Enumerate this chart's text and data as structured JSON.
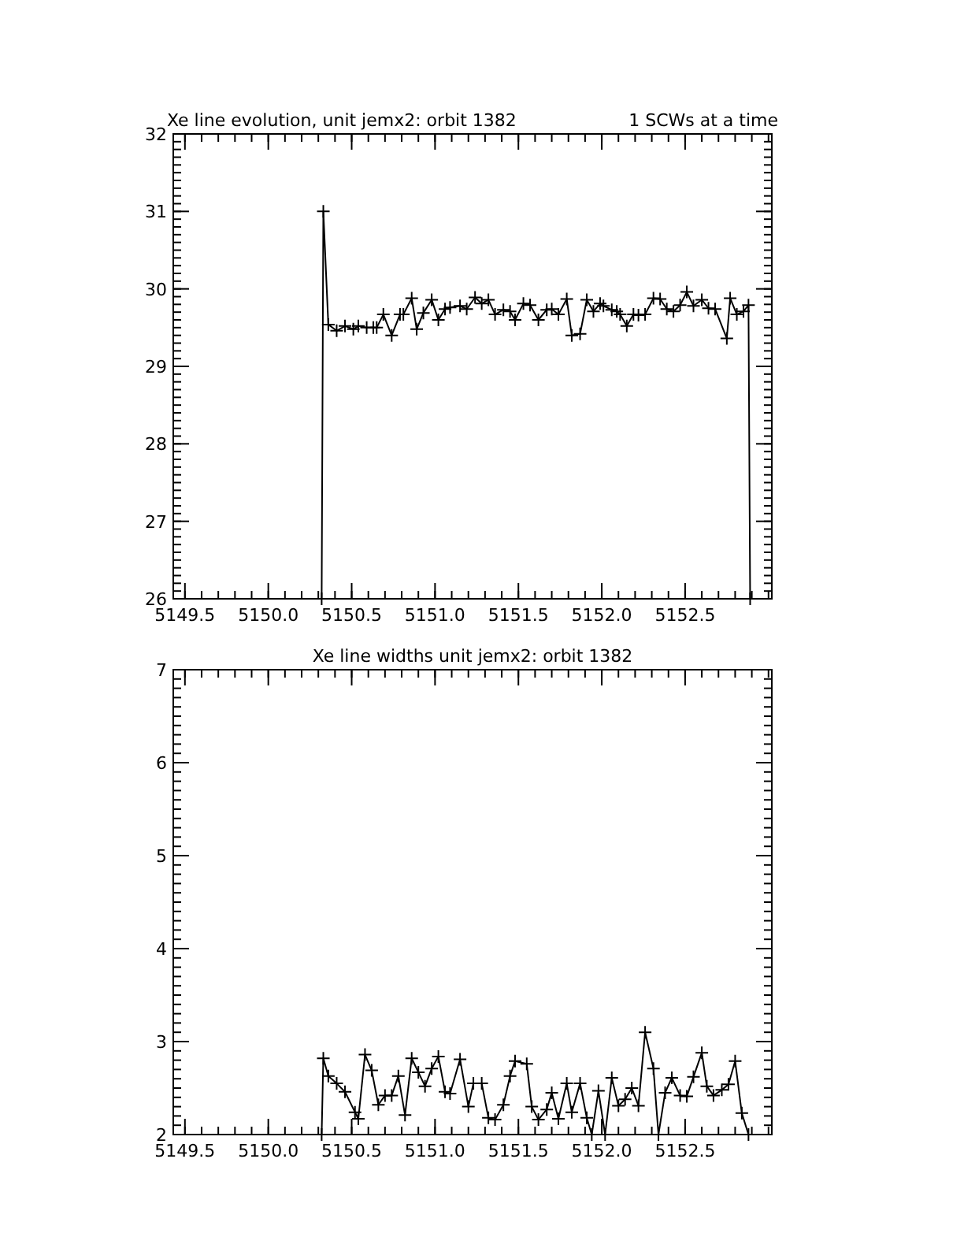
{
  "chart_data": [
    {
      "type": "line",
      "title": "Xe line evolution, unit jemx2: orbit 1382",
      "subtitle": "1 SCWs at a time",
      "marker": "cross",
      "line_style": "solid",
      "grid": false,
      "xlim": [
        5149.43,
        5153.02
      ],
      "ylim": [
        26,
        32
      ],
      "xticks": [
        5149.5,
        {
          "value": 5150,
          "label": "5150.0"
        },
        5150.5,
        {
          "value": 5151,
          "label": "5151.0"
        },
        5151.5,
        {
          "value": 5152,
          "label": "5152.0"
        },
        5152.5
      ],
      "yticks": [
        26,
        27,
        28,
        29,
        30,
        31,
        32
      ],
      "series": [
        {
          "color": "#000000",
          "x": [
            5150.32,
            5150.33,
            5150.36,
            5150.41,
            5150.46,
            5150.51,
            5150.54,
            5150.59,
            5150.63,
            5150.65,
            5150.69,
            5150.74,
            5150.79,
            5150.81,
            5150.86,
            5150.89,
            5150.93,
            5150.98,
            5151.02,
            5151.06,
            5151.09,
            5151.15,
            5151.19,
            5151.24,
            5151.28,
            5151.32,
            5151.36,
            5151.41,
            5151.45,
            5151.48,
            5151.53,
            5151.57,
            5151.62,
            5151.67,
            5151.7,
            5151.74,
            5151.79,
            5151.82,
            5151.87,
            5151.91,
            5151.95,
            5151.99,
            5152.01,
            5152.06,
            5152.09,
            5152.11,
            5152.15,
            5152.19,
            5152.22,
            5152.26,
            5152.31,
            5152.35,
            5152.39,
            5152.43,
            5152.47,
            5152.51,
            5152.55,
            5152.6,
            5152.64,
            5152.68,
            5152.75,
            5152.77,
            5152.81,
            5152.85,
            5152.88,
            5152.89
          ],
          "values": [
            26,
            31.0,
            29.54,
            29.46,
            29.52,
            29.48,
            29.52,
            29.5,
            29.5,
            29.5,
            29.67,
            29.4,
            29.67,
            29.67,
            29.88,
            29.48,
            29.69,
            29.86,
            29.6,
            29.74,
            29.76,
            29.78,
            29.74,
            29.89,
            29.81,
            29.86,
            29.67,
            29.73,
            29.71,
            29.6,
            29.81,
            29.79,
            29.6,
            29.73,
            29.74,
            29.67,
            29.87,
            29.4,
            29.42,
            29.86,
            29.71,
            29.81,
            29.78,
            29.73,
            29.71,
            29.67,
            29.52,
            29.67,
            29.66,
            29.67,
            29.88,
            29.87,
            29.74,
            29.71,
            29.79,
            29.96,
            29.78,
            29.86,
            29.75,
            29.74,
            29.36,
            29.88,
            29.67,
            29.71,
            29.79,
            26
          ]
        }
      ]
    },
    {
      "type": "line",
      "title": "Xe line widths unit jemx2: orbit 1382",
      "marker": "cross",
      "line_style": "solid",
      "grid": false,
      "xlim": [
        5149.43,
        5153.02
      ],
      "ylim": [
        2,
        7
      ],
      "xticks": [
        5149.5,
        {
          "value": 5150,
          "label": "5150.0"
        },
        5150.5,
        {
          "value": 5151,
          "label": "5151.0"
        },
        5151.5,
        {
          "value": 5152,
          "label": "5152.0"
        },
        5152.5
      ],
      "yticks": [
        2,
        3,
        4,
        5,
        6,
        7
      ],
      "series": [
        {
          "color": "#000000",
          "x": [
            5150.32,
            5150.33,
            5150.36,
            5150.41,
            5150.46,
            5150.52,
            5150.54,
            5150.58,
            5150.62,
            5150.66,
            5150.7,
            5150.74,
            5150.78,
            5150.82,
            5150.86,
            5150.9,
            5150.94,
            5150.98,
            5151.02,
            5151.06,
            5151.09,
            5151.15,
            5151.2,
            5151.23,
            5151.28,
            5151.32,
            5151.36,
            5151.41,
            5151.45,
            5151.48,
            5151.55,
            5151.58,
            5151.62,
            5151.67,
            5151.7,
            5151.74,
            5151.79,
            5151.82,
            5151.87,
            5151.91,
            5151.94,
            5151.98,
            5152.02,
            5152.06,
            5152.1,
            5152.14,
            5152.18,
            5152.22,
            5152.26,
            5152.31,
            5152.34,
            5152.38,
            5152.42,
            5152.47,
            5152.51,
            5152.55,
            5152.6,
            5152.63,
            5152.67,
            5152.72,
            5152.76,
            5152.8,
            5152.84,
            5152.88
          ],
          "values": [
            2,
            2.82,
            2.63,
            2.55,
            2.46,
            2.24,
            2.17,
            2.86,
            2.69,
            2.32,
            2.42,
            2.42,
            2.63,
            2.21,
            2.82,
            2.67,
            2.52,
            2.71,
            2.84,
            2.46,
            2.44,
            2.81,
            2.3,
            2.55,
            2.55,
            2.18,
            2.16,
            2.32,
            2.63,
            2.79,
            2.76,
            2.3,
            2.16,
            2.27,
            2.45,
            2.17,
            2.55,
            2.24,
            2.55,
            2.18,
            2.0,
            2.47,
            2.0,
            2.61,
            2.31,
            2.38,
            2.5,
            2.31,
            3.1,
            2.71,
            2.0,
            2.45,
            2.61,
            2.42,
            2.41,
            2.62,
            2.88,
            2.52,
            2.42,
            2.48,
            2.54,
            2.79,
            2.23,
            2.0
          ]
        }
      ]
    }
  ]
}
